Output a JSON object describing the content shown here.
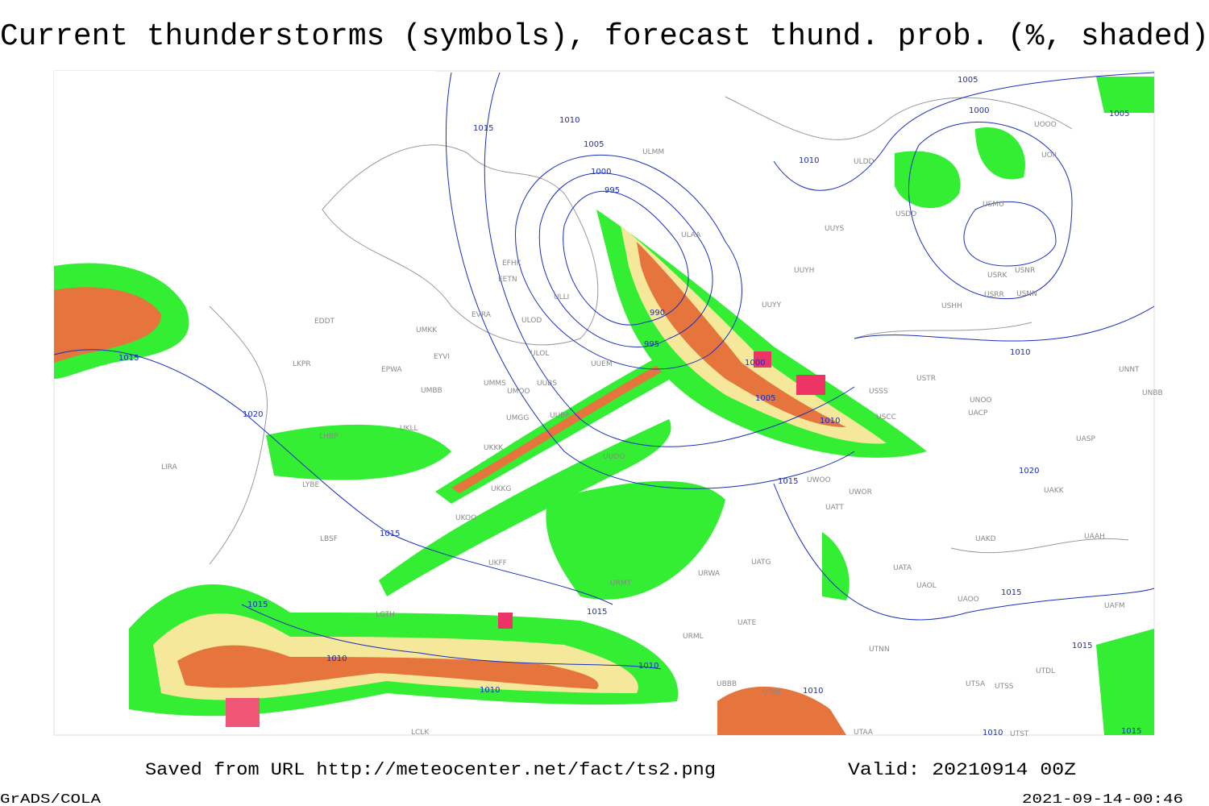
{
  "title": "Current thunderstorms (symbols), forecast thund. prob. (%, shaded)",
  "footer": {
    "source": "Saved from URL http://meteocenter.net/fact/ts2.png",
    "valid": "Valid: 20210914 00Z",
    "credit": "GrADS/COLA",
    "timestamp": "2021-09-14-00:46"
  },
  "isobar_labels": [
    "1015",
    "1010",
    "1005",
    "1000",
    "995",
    "990",
    "995",
    "1000",
    "1005",
    "1010",
    "1015",
    "1020",
    "1015",
    "1015",
    "1010",
    "1010",
    "1015",
    "1010",
    "1015",
    "1020",
    "1010",
    "1010",
    "1005",
    "1000",
    "1005",
    "1015",
    "1015",
    "1010",
    "1010",
    "1015"
  ],
  "stations": [
    "ULMM",
    "ULDD",
    "UUYS",
    "UUYH",
    "UUYY",
    "ULAA",
    "EFHK",
    "EETN",
    "EVRA",
    "ULOD",
    "ULLI",
    "UMKK",
    "EDDT",
    "ULOL",
    "EYVI",
    "UUEM",
    "EPWA",
    "UMMS",
    "UMOO",
    "UUBS",
    "UMBB",
    "LKPR",
    "UMGG",
    "UUBP",
    "UKLL",
    "LHBP",
    "UKKK",
    "UUOO",
    "LIRA",
    "LYBE",
    "UKOO",
    "LBSF",
    "UKFF",
    "UKKG",
    "LGTH",
    "URMT",
    "URML",
    "UATE",
    "UATG",
    "URWA",
    "USTR",
    "USSS",
    "USCC",
    "UNOO",
    "UACP",
    "UASP",
    "UNNT",
    "UNBB",
    "UWOO",
    "UWOR",
    "UATT",
    "UAKD",
    "UAAH",
    "UATA",
    "UAOL",
    "UAOO",
    "UAFM",
    "UTNN",
    "UTSA",
    "UTSS",
    "UTAK",
    "USMU",
    "USRR",
    "USNN",
    "USHH",
    "USRK",
    "USNR",
    "UOOO",
    "UOII",
    "USDD",
    "UAKK",
    "UTDL",
    "UTST",
    "UTAA",
    "UBBB",
    "LCLK"
  ]
}
